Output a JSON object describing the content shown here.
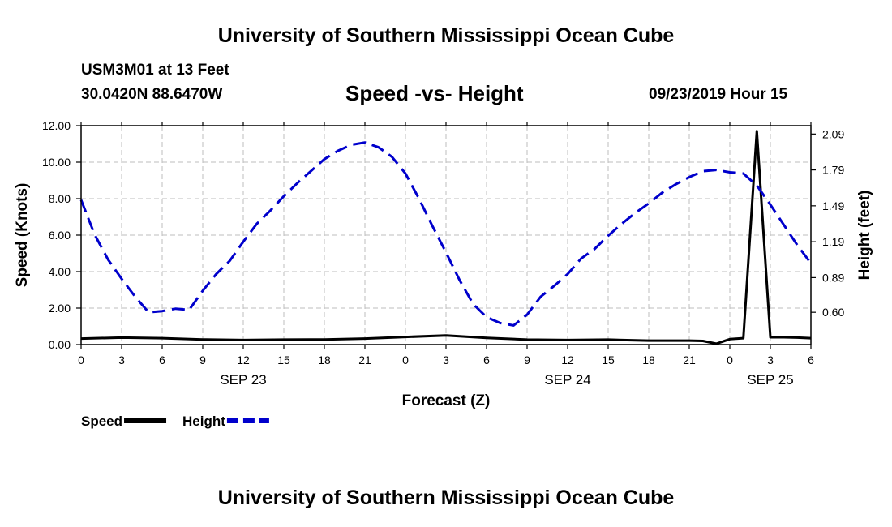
{
  "page": {
    "title_top": "University of Southern Mississippi Ocean Cube",
    "title_bottom": "University of Southern Mississippi Ocean Cube",
    "station": "USM3M01 at 13 Feet",
    "coords": "30.0420N 88.6470W",
    "timestamp": "09/23/2019 Hour 15"
  },
  "chart_data": {
    "type": "line",
    "title": "Speed -vs- Height",
    "xlabel": "Forecast (Z)",
    "ylabel": "Speed (Knots)",
    "y2label": "Height (feet)",
    "x_tick_labels": [
      "0",
      "3",
      "6",
      "9",
      "12",
      "15",
      "18",
      "21",
      "0",
      "3",
      "6",
      "9",
      "12",
      "15",
      "18",
      "21",
      "0",
      "3",
      "6"
    ],
    "day_labels": [
      {
        "label": "SEP 23",
        "hour": 12
      },
      {
        "label": "SEP 24",
        "hour": 36
      },
      {
        "label": "SEP 25",
        "hour": 51
      }
    ],
    "xlim": [
      0,
      54
    ],
    "ylim": [
      0,
      12
    ],
    "y_ticks": [
      "0.00",
      "2.00",
      "4.00",
      "6.00",
      "8.00",
      "10.00",
      "12.00"
    ],
    "y2lim": [
      0.33,
      2.16
    ],
    "y2_ticks": [
      "0.60",
      "0.89",
      "1.19",
      "1.49",
      "1.79",
      "2.09"
    ],
    "grid": true,
    "legend_position": "bottom-left",
    "series": [
      {
        "name": "Speed",
        "axis": "left",
        "color": "#000000",
        "style": "solid",
        "x": [
          0,
          3,
          6,
          9,
          12,
          15,
          18,
          21,
          24,
          27,
          30,
          33,
          36,
          39,
          42,
          45,
          46,
          47,
          48,
          49,
          50,
          51,
          52,
          53,
          54
        ],
        "y": [
          0.33,
          0.38,
          0.35,
          0.28,
          0.25,
          0.27,
          0.28,
          0.33,
          0.42,
          0.5,
          0.37,
          0.27,
          0.25,
          0.27,
          0.22,
          0.22,
          0.2,
          0.05,
          0.3,
          0.35,
          11.7,
          0.4,
          0.4,
          0.38,
          0.35
        ]
      },
      {
        "name": "Height",
        "axis": "right",
        "color": "#0000cc",
        "style": "dashed",
        "x": [
          0,
          1,
          2,
          3,
          4,
          5,
          6,
          7,
          8,
          9,
          10,
          11,
          12,
          13,
          14,
          15,
          16,
          17,
          18,
          19,
          20,
          21,
          22,
          23,
          24,
          25,
          26,
          27,
          28,
          29,
          30,
          31,
          32,
          33,
          34,
          35,
          36,
          37,
          38,
          39,
          40,
          41,
          42,
          43,
          44,
          45,
          46,
          47,
          48,
          49,
          50,
          51,
          52,
          53,
          54
        ],
        "y": [
          1.54,
          1.25,
          1.04,
          0.88,
          0.73,
          0.6,
          0.61,
          0.63,
          0.62,
          0.78,
          0.92,
          1.03,
          1.19,
          1.34,
          1.45,
          1.57,
          1.68,
          1.78,
          1.88,
          1.95,
          2.0,
          2.02,
          1.98,
          1.9,
          1.76,
          1.55,
          1.32,
          1.1,
          0.87,
          0.67,
          0.56,
          0.51,
          0.49,
          0.58,
          0.73,
          0.82,
          0.92,
          1.05,
          1.13,
          1.24,
          1.34,
          1.43,
          1.51,
          1.6,
          1.67,
          1.73,
          1.78,
          1.79,
          1.77,
          1.76,
          1.66,
          1.5,
          1.33,
          1.16,
          1.01
        ]
      }
    ]
  }
}
